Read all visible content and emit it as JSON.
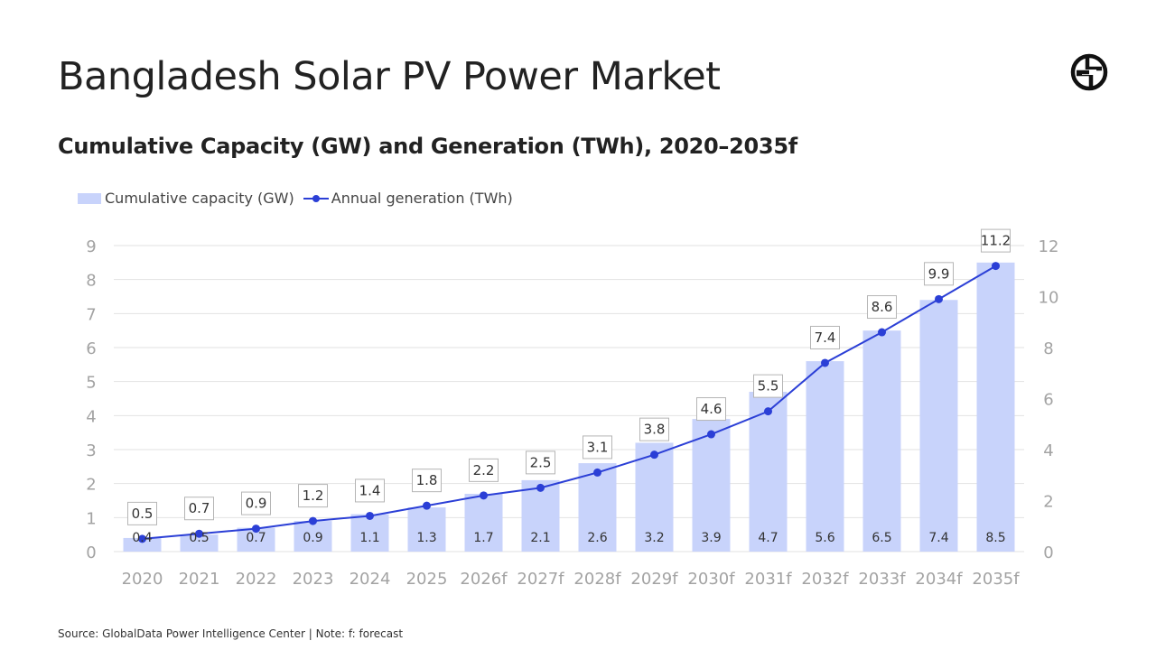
{
  "header": {
    "title": "Bangladesh Solar PV Power Market",
    "subtitle": "Cumulative Capacity (GW) and Generation (TWh), 2020–2035f"
  },
  "legend": {
    "bar_label": "Cumulative capacity (GW)",
    "line_label": "Annual generation (TWh)"
  },
  "footer": {
    "source": "Source: GlobalData Power Intelligence Center | Note: f: forecast"
  },
  "colors": {
    "bar": "#c8d3fb",
    "line": "#2b3fd6",
    "grid": "#e2e2e2",
    "logo": "#111111"
  },
  "logo": {
    "icon": "globaldata-logo-icon"
  },
  "chart_data": {
    "type": "bar",
    "categories": [
      "2020",
      "2021",
      "2022",
      "2023",
      "2024",
      "2025",
      "2026f",
      "2027f",
      "2028f",
      "2029f",
      "2030f",
      "2031f",
      "2032f",
      "2033f",
      "2034f",
      "2035f"
    ],
    "series": [
      {
        "name": "Cumulative capacity (GW)",
        "type": "bar",
        "axis": "left",
        "values": [
          0.4,
          0.5,
          0.7,
          0.9,
          1.1,
          1.3,
          1.7,
          2.1,
          2.6,
          3.2,
          3.9,
          4.7,
          5.6,
          6.5,
          7.4,
          8.5
        ]
      },
      {
        "name": "Annual generation (TWh)",
        "type": "line",
        "axis": "right",
        "values": [
          0.5,
          0.7,
          0.9,
          1.2,
          1.4,
          1.8,
          2.2,
          2.5,
          3.1,
          3.8,
          4.6,
          5.5,
          7.4,
          8.6,
          9.9,
          11.2
        ]
      }
    ],
    "y_left": {
      "ylim": [
        0,
        9
      ],
      "ticks": [
        0,
        1,
        2,
        3,
        4,
        5,
        6,
        7,
        8,
        9
      ]
    },
    "y_right": {
      "ylim": [
        0,
        12
      ],
      "ticks": [
        0,
        2,
        4,
        6,
        8,
        10,
        12
      ]
    },
    "grid": true,
    "legend_position": "top-left",
    "data_labels": true
  }
}
